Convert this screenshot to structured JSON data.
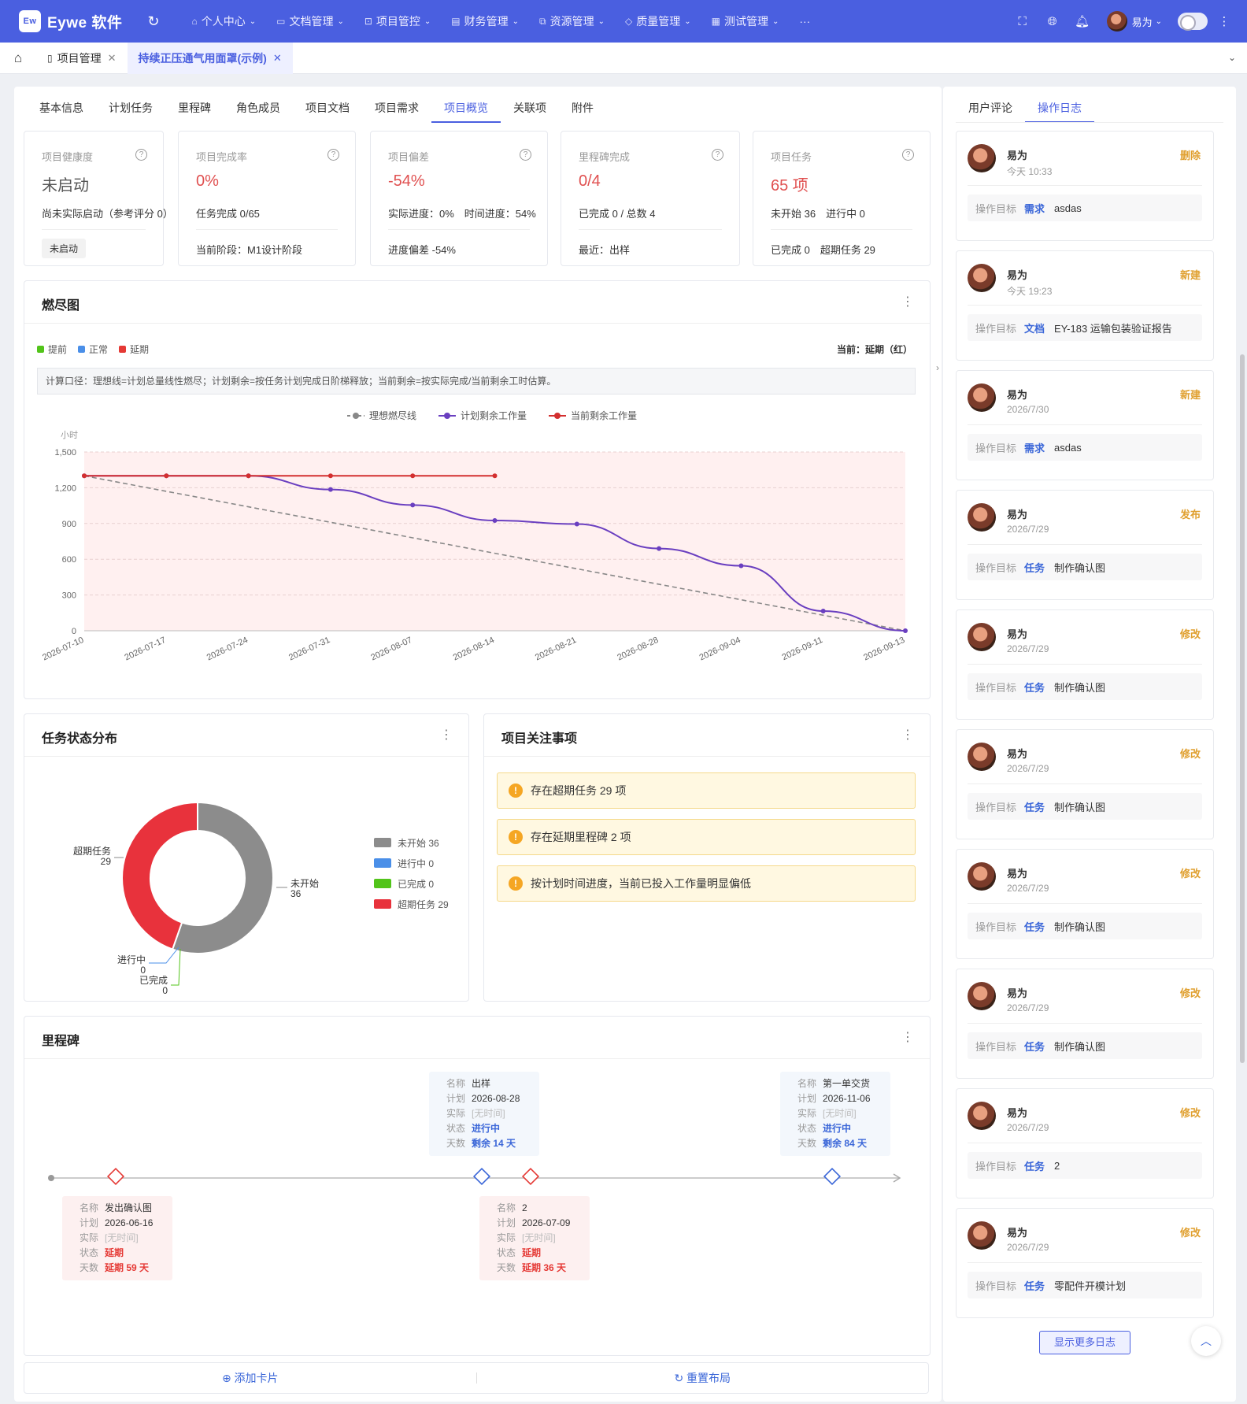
{
  "app": {
    "logo_badge": "Ew",
    "name": "Eywe 软件"
  },
  "topnav": [
    {
      "label": "个人中心",
      "icon": "home-icon"
    },
    {
      "label": "文档管理",
      "icon": "folder-icon"
    },
    {
      "label": "项目管控",
      "icon": "project-icon"
    },
    {
      "label": "财务管理",
      "icon": "finance-icon"
    },
    {
      "label": "资源管理",
      "icon": "resource-icon"
    },
    {
      "label": "质量管理",
      "icon": "shield-icon"
    },
    {
      "label": "测试管理",
      "icon": "test-icon"
    }
  ],
  "topnav_more": "···",
  "user": {
    "name": "易为"
  },
  "tabs": [
    {
      "label": "项目管理"
    },
    {
      "label": "持续正压通气用面罩(示例)",
      "active": true
    }
  ],
  "subtabs": [
    "基本信息",
    "计划任务",
    "里程碑",
    "角色成员",
    "项目文档",
    "项目需求",
    "项目概览",
    "关联项",
    "附件"
  ],
  "subtab_active": "项目概览",
  "stats": [
    {
      "label": "项目健康度",
      "value": "未启动",
      "line1": "尚未实际启动（参考评分 0）",
      "badge": "未启动"
    },
    {
      "label": "项目完成率",
      "value": "0%",
      "line1": "任务完成 0/65",
      "line2": "当前阶段：M1设计阶段"
    },
    {
      "label": "项目偏差",
      "value": "-54%",
      "line1": "实际进度：0%　时间进度：54%",
      "line2": "进度偏差 -54%"
    },
    {
      "label": "里程碑完成",
      "value": "0/4",
      "line1": "已完成 0 / 总数 4",
      "line2": "最近：出样"
    },
    {
      "label": "项目任务",
      "value": "65 项",
      "line1": "未开始 36　进行中 0",
      "line2": "已完成 0　超期任务 29"
    }
  ],
  "burndown": {
    "title": "燃尽图",
    "legend": [
      {
        "label": "提前",
        "color": "#52c41a"
      },
      {
        "label": "正常",
        "color": "#4a8fe8"
      },
      {
        "label": "延期",
        "color": "#e53935"
      }
    ],
    "current": "当前：延期（红）",
    "note": "计算口径：理想线=计划总量线性燃尽；计划剩余=按任务计划完成日阶梯释放；当前剩余=按实际完成/当前剩余工时估算。",
    "unit": "小时"
  },
  "chart_data": [
    {
      "type": "line",
      "x": [
        "2026-07-10",
        "2026-07-17",
        "2026-07-24",
        "2026-07-31",
        "2026-08-07",
        "2026-08-14",
        "2026-08-21",
        "2026-08-28",
        "2026-09-04",
        "2026-09-11",
        "2026-09-13"
      ],
      "ylabel": "小时",
      "ylim": [
        0,
        1500
      ],
      "yticks": [
        0,
        300,
        600,
        900,
        1200,
        1500
      ],
      "grid": true,
      "legend_position": "top",
      "series": [
        {
          "name": "理想燃尽线",
          "color": "#888888",
          "dashed": true,
          "values": [
            1300,
            null,
            null,
            null,
            null,
            null,
            null,
            null,
            null,
            null,
            0
          ]
        },
        {
          "name": "计划剩余工作量",
          "color": "#6a3fc0",
          "values": [
            1300,
            1300,
            1300,
            1185,
            1055,
            925,
            895,
            690,
            545,
            165,
            0
          ]
        },
        {
          "name": "当前剩余工作量",
          "color": "#d32f2f",
          "values": [
            1300,
            1300,
            1300,
            1300,
            1300,
            1300,
            null,
            null,
            null,
            null,
            null
          ]
        }
      ]
    },
    {
      "type": "pie",
      "title": "任务状态分布",
      "donut": true,
      "slices": [
        {
          "name": "未开始",
          "value": 36,
          "color": "#8c8c8c"
        },
        {
          "name": "进行中",
          "value": 0,
          "color": "#4a8fe8"
        },
        {
          "name": "已完成",
          "value": 0,
          "color": "#52c41a"
        },
        {
          "name": "超期任务",
          "value": 29,
          "color": "#e8323c"
        }
      ],
      "legend": [
        "未开始 36",
        "进行中 0",
        "已完成 0",
        "超期任务 29"
      ],
      "legend_position": "right"
    }
  ],
  "pie_labels": {
    "overdue": "超期任务",
    "overdue_v": "29",
    "notstart": "未开始",
    "notstart_v": "36",
    "inprog": "进行中",
    "inprog_v": "0",
    "done": "已完成",
    "done_v": "0"
  },
  "attention": {
    "title": "项目关注事项",
    "items": [
      "存在超期任务 29 项",
      "存在延期里程碑 2 项",
      "按计划时间进度，当前已投入工作量明显偏低"
    ]
  },
  "milestones": {
    "title": "里程碑",
    "keys": {
      "name": "名称",
      "plan": "计划",
      "actual": "实际",
      "status": "状态",
      "days": "天数"
    },
    "items": [
      {
        "name": "发出确认图",
        "plan": "2026-06-16",
        "actual": "[无时间]",
        "status": "延期",
        "days": "延期 59 天",
        "tone": "red"
      },
      {
        "name": "出样",
        "plan": "2026-08-28",
        "actual": "[无时间]",
        "status": "进行中",
        "days": "剩余 14 天",
        "tone": "blue"
      },
      {
        "name": "2",
        "plan": "2026-07-09",
        "actual": "[无时间]",
        "status": "延期",
        "days": "延期 36 天",
        "tone": "red"
      },
      {
        "name": "第一单交货",
        "plan": "2026-11-06",
        "actual": "[无时间]",
        "status": "进行中",
        "days": "剩余 84 天",
        "tone": "blue"
      }
    ]
  },
  "bottom": {
    "add": "⊕ 添加卡片",
    "reset": "↻ 重置布局"
  },
  "side": {
    "tabs": [
      "用户评论",
      "操作日志"
    ],
    "active": "操作日志",
    "target_key": "操作目标",
    "logs": [
      {
        "user": "易为",
        "time": "今天 10:33",
        "action": "删除",
        "type": "需求",
        "target": "asdas"
      },
      {
        "user": "易为",
        "time": "今天 19:23",
        "action": "新建",
        "type": "文档",
        "target": "EY-183 运输包装验证报告"
      },
      {
        "user": "易为",
        "time": "2026/7/30",
        "action": "新建",
        "type": "需求",
        "target": "asdas"
      },
      {
        "user": "易为",
        "time": "2026/7/29",
        "action": "发布",
        "type": "任务",
        "target": "制作确认图"
      },
      {
        "user": "易为",
        "time": "2026/7/29",
        "action": "修改",
        "type": "任务",
        "target": "制作确认图"
      },
      {
        "user": "易为",
        "time": "2026/7/29",
        "action": "修改",
        "type": "任务",
        "target": "制作确认图"
      },
      {
        "user": "易为",
        "time": "2026/7/29",
        "action": "修改",
        "type": "任务",
        "target": "制作确认图"
      },
      {
        "user": "易为",
        "time": "2026/7/29",
        "action": "修改",
        "type": "任务",
        "target": "制作确认图"
      },
      {
        "user": "易为",
        "time": "2026/7/29",
        "action": "修改",
        "type": "任务",
        "target": "2"
      },
      {
        "user": "易为",
        "time": "2026/7/29",
        "action": "修改",
        "type": "任务",
        "target": "零配件开模计划"
      }
    ],
    "more": "显示更多日志"
  }
}
